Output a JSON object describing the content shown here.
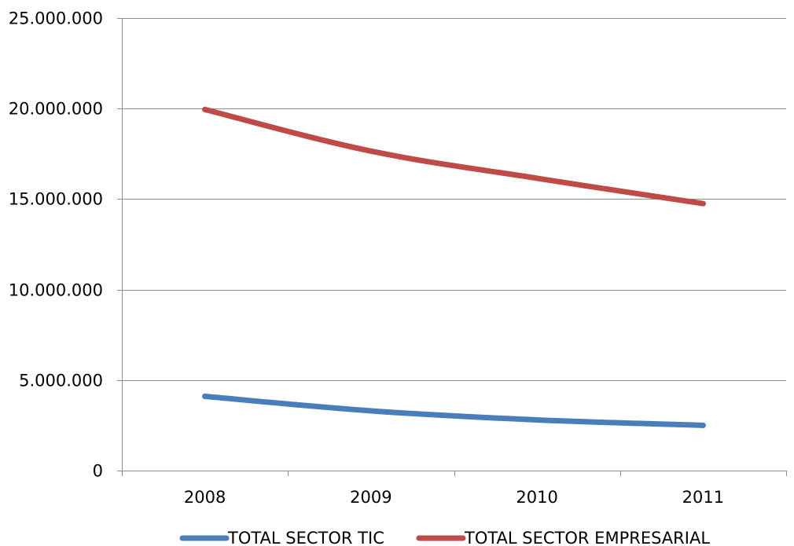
{
  "chart_data": {
    "type": "line",
    "title": "",
    "xlabel": "",
    "ylabel": "",
    "categories": [
      "2008",
      "2009",
      "2010",
      "2011"
    ],
    "ylim": [
      0,
      25000000
    ],
    "y_ticks": [
      0,
      5000000,
      10000000,
      15000000,
      20000000,
      25000000
    ],
    "y_tick_labels": [
      "0",
      "5.000.000",
      "10.000.000",
      "15.000.000",
      "20.000.000",
      "25.000.000"
    ],
    "grid": true,
    "legend_position": "bottom",
    "series": [
      {
        "name": "TOTAL SECTOR TIC",
        "color": "#4a7ebb",
        "values": [
          4100000,
          3300000,
          2800000,
          2500000
        ]
      },
      {
        "name": "TOTAL SECTOR EMPRESARIAL",
        "color": "#be4b48",
        "values": [
          19950000,
          17650000,
          16150000,
          14750000
        ]
      }
    ]
  }
}
